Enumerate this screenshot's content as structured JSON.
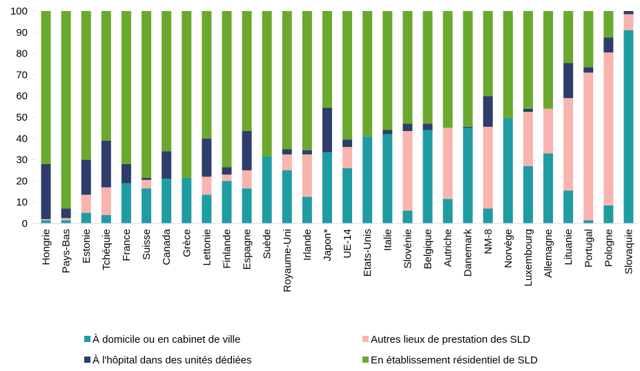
{
  "chart_data": {
    "type": "stacked_bar",
    "categories": [
      "Hongrie",
      "Pays-Bas",
      "Estonie",
      "Tchéquie",
      "France",
      "Suisse",
      "Canada",
      "Grèce",
      "Lettonie",
      "Finlande",
      "Espagne",
      "Suède",
      "Royaume-Uni",
      "Irlande",
      "Japon*",
      "UE-14",
      "Etats-Unis",
      "Italie",
      "Slovénie",
      "Belgique",
      "Autriche",
      "Danemark",
      "NM-8",
      "Norvège",
      "Luxembourg",
      "Allemagne",
      "Lituanie",
      "Portugal",
      "Pologne",
      "Slovaquie"
    ],
    "series": [
      {
        "name": "À domicile ou en cabinet de ville",
        "color": "#1f9ca3",
        "values": [
          1.5,
          1.5,
          5,
          4,
          19,
          16.5,
          21,
          21.5,
          13.5,
          20,
          16.5,
          31.5,
          25,
          12.5,
          33.5,
          26,
          41,
          42,
          6,
          44,
          11.5,
          45,
          7,
          49.5,
          27,
          33,
          15.5,
          1.5,
          8.5,
          91
        ]
      },
      {
        "name": "Autres lieux de prestation des SLD",
        "color": "#f9b4b0",
        "values": [
          0.5,
          1,
          8.5,
          13,
          0,
          4,
          0,
          0,
          8.5,
          3,
          8.5,
          0,
          7.5,
          20,
          0,
          10,
          0,
          0,
          37.5,
          0,
          33.5,
          0,
          38.5,
          0,
          25.5,
          21,
          43.5,
          69.5,
          72,
          7.5
        ]
      },
      {
        "name": "À l'hôpital dans des unités dédiées",
        "color": "#2e3d6b",
        "values": [
          26,
          4.5,
          16.5,
          22,
          9,
          1,
          13,
          0,
          18,
          3.5,
          18.5,
          0,
          2.5,
          2,
          21,
          3.5,
          0,
          2,
          3.5,
          3,
          0,
          0.5,
          14.5,
          0,
          1.5,
          0,
          16.5,
          2.5,
          7,
          1.5
        ]
      },
      {
        "name": "En établissement résidentiel de SLD",
        "color": "#6aa92e",
        "values": [
          72,
          93,
          70,
          61,
          72,
          78.5,
          66,
          78.5,
          60,
          73.5,
          56.5,
          68.5,
          65,
          65.5,
          45.5,
          60.5,
          59,
          56,
          53,
          53,
          55,
          54.5,
          40,
          50.5,
          46,
          46,
          24.5,
          26.5,
          12.5,
          0
        ]
      }
    ],
    "ylim": [
      0,
      100
    ],
    "yticks": [
      0,
      10,
      20,
      30,
      40,
      50,
      60,
      70,
      80,
      90,
      100
    ]
  }
}
